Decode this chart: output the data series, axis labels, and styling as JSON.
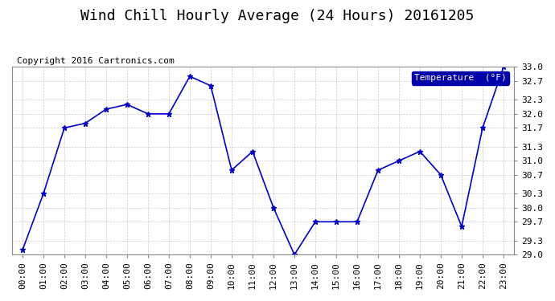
{
  "title": "Wind Chill Hourly Average (24 Hours) 20161205",
  "copyright": "Copyright 2016 Cartronics.com",
  "legend_label": "Temperature  (°F)",
  "hours": [
    "00:00",
    "01:00",
    "02:00",
    "03:00",
    "04:00",
    "05:00",
    "06:00",
    "07:00",
    "08:00",
    "09:00",
    "10:00",
    "11:00",
    "12:00",
    "13:00",
    "14:00",
    "15:00",
    "16:00",
    "17:00",
    "18:00",
    "19:00",
    "20:00",
    "21:00",
    "22:00",
    "23:00"
  ],
  "values": [
    29.1,
    30.3,
    31.7,
    31.8,
    32.1,
    32.2,
    32.0,
    32.0,
    32.8,
    32.6,
    30.8,
    31.2,
    30.0,
    29.0,
    29.7,
    29.7,
    29.7,
    30.8,
    31.0,
    31.2,
    30.7,
    29.6,
    31.7,
    33.0
  ],
  "ylim_min": 29.0,
  "ylim_max": 33.0,
  "yticks": [
    29.0,
    29.3,
    29.7,
    30.0,
    30.3,
    30.7,
    31.0,
    31.3,
    31.7,
    32.0,
    32.3,
    32.7,
    33.0
  ],
  "line_color": "#0000cc",
  "marker_color": "#0000cc",
  "bg_color": "#ffffff",
  "plot_bg_color": "#ffffff",
  "grid_color": "#bbbbbb",
  "title_fontsize": 13,
  "copyright_fontsize": 8,
  "tick_fontsize": 8,
  "legend_bg_color": "#0000aa",
  "legend_text_color": "#ffffff"
}
